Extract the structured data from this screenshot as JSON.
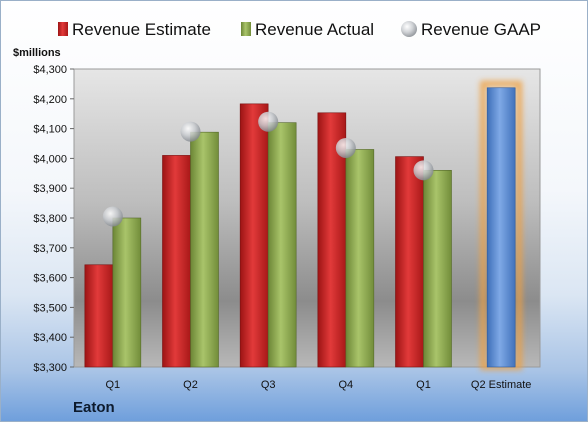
{
  "company": "Eaton",
  "chart_data": {
    "type": "bar",
    "ylabel": "$millions",
    "ylim": [
      3300,
      4300
    ],
    "yticks": [
      3300,
      3400,
      3500,
      3600,
      3700,
      3800,
      3900,
      4000,
      4100,
      4200,
      4300
    ],
    "ytick_labels": [
      "$3,300",
      "$3,400",
      "$3,500",
      "$3,600",
      "$3,700",
      "$3,800",
      "$3,900",
      "$4,000",
      "$4,100",
      "$4,200",
      "$4,300"
    ],
    "categories": [
      "Q1",
      "Q2",
      "Q3",
      "Q4",
      "Q1",
      "Q2 Estimate"
    ],
    "legend_position": "top",
    "grid": false,
    "series": [
      {
        "name": "Revenue Estimate",
        "kind": "bar",
        "color": "#cc2a2a",
        "values": [
          3643,
          4010,
          4183,
          4153,
          4006,
          null
        ]
      },
      {
        "name": "Revenue Actual",
        "kind": "bar",
        "color": "#8fac52",
        "values": [
          3800,
          4088,
          4120,
          4030,
          3960,
          null
        ]
      },
      {
        "name": "Revenue GAAP",
        "kind": "marker",
        "color": "#c0c4c8",
        "values": [
          3805,
          4090,
          4123,
          4035,
          3960,
          null
        ]
      },
      {
        "name": "Q2 Estimate",
        "kind": "highlight-bar",
        "color": "#5b8fd6",
        "glow": "#f0a040",
        "values": [
          null,
          null,
          null,
          null,
          null,
          4237
        ]
      }
    ]
  }
}
